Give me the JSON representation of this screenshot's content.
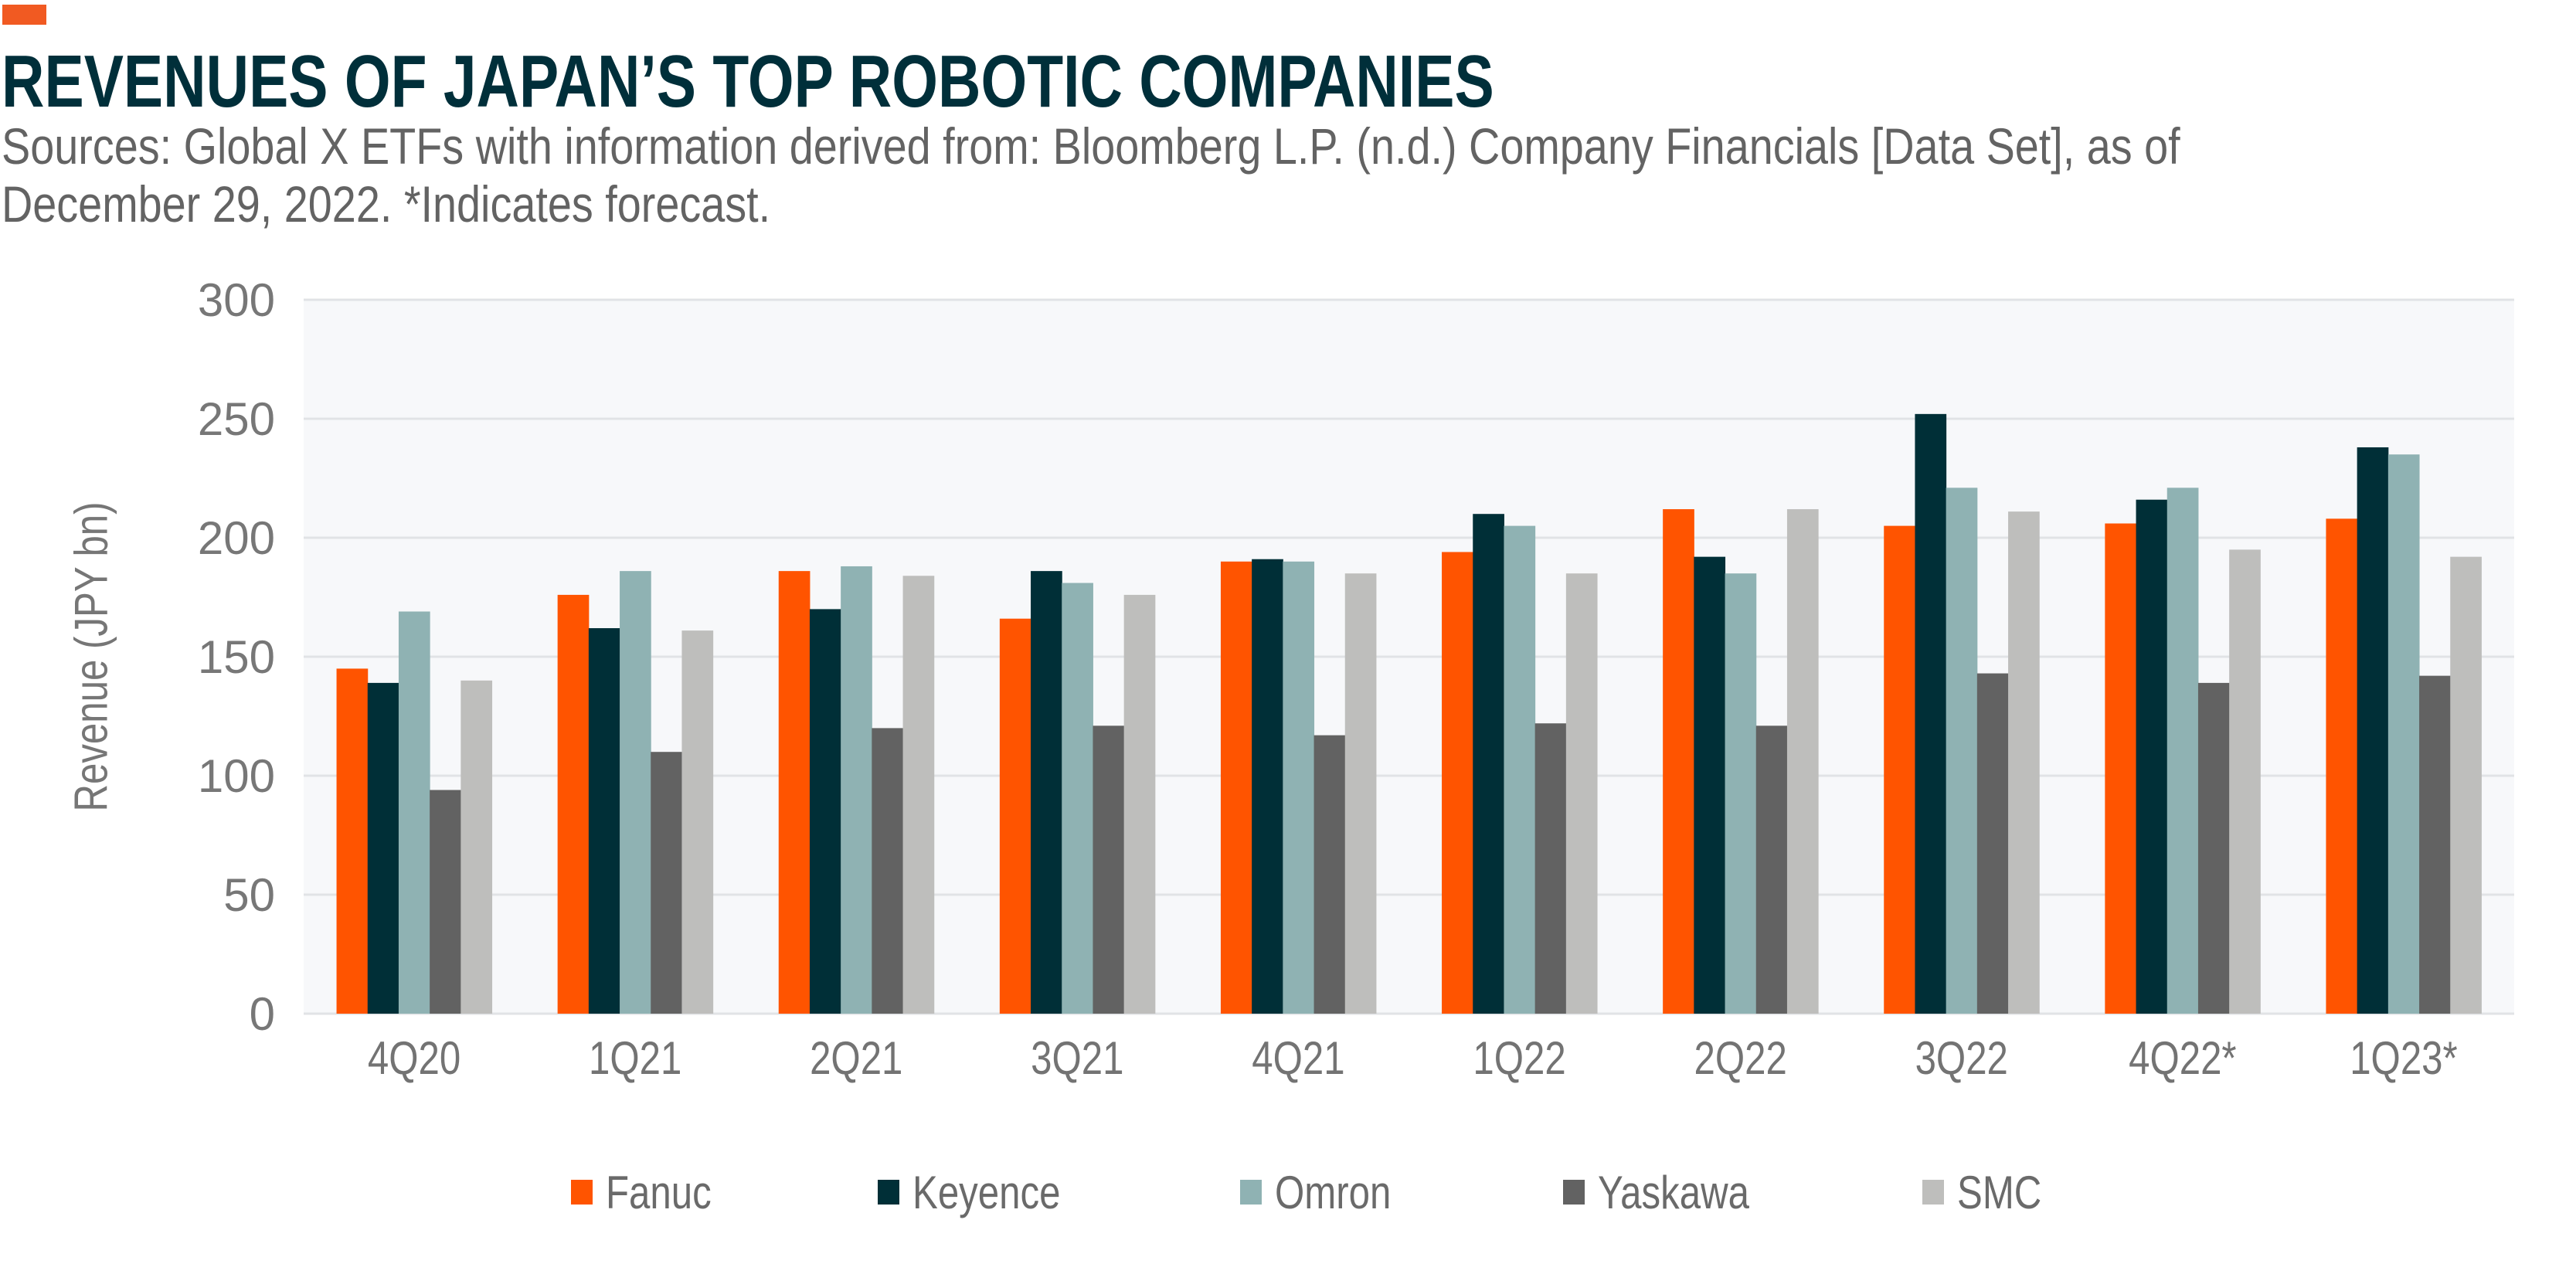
{
  "header": {
    "accent_color": "#F15A22",
    "title": "REVENUES OF JAPAN’S TOP ROBOTIC COMPANIES",
    "subtitle_lines": [
      "Sources: Global X ETFs with information derived from: Bloomberg L.P. (n.d.) Company Financials [Data Set], as of",
      "December 29, 2022. *Indicates forecast."
    ]
  },
  "chart_data": {
    "type": "bar",
    "title": "REVENUES OF JAPAN’S TOP ROBOTIC COMPANIES",
    "xlabel": "",
    "ylabel": "Revenue (JPY bn)",
    "ylim": [
      0,
      300
    ],
    "yticks": [
      0,
      50,
      100,
      150,
      200,
      250,
      300
    ],
    "grid": true,
    "legend_position": "bottom",
    "categories": [
      "4Q20",
      "1Q21",
      "2Q21",
      "3Q21",
      "4Q21",
      "1Q22",
      "2Q22",
      "3Q22",
      "4Q22*",
      "1Q23*"
    ],
    "series": [
      {
        "name": "Fanuc",
        "color": "#FF5400",
        "values": [
          145,
          176,
          186,
          166,
          190,
          194,
          212,
          205,
          206,
          208
        ]
      },
      {
        "name": "Keyence",
        "color": "#002F37",
        "values": [
          139,
          162,
          170,
          186,
          191,
          210,
          192,
          252,
          216,
          238
        ]
      },
      {
        "name": "Omron",
        "color": "#8FB2B3",
        "values": [
          169,
          186,
          188,
          181,
          190,
          205,
          185,
          221,
          221,
          235
        ]
      },
      {
        "name": "Yaskawa",
        "color": "#626262",
        "values": [
          94,
          110,
          120,
          121,
          117,
          122,
          121,
          143,
          139,
          142
        ]
      },
      {
        "name": "SMC",
        "color": "#BEBEBC",
        "values": [
          140,
          161,
          184,
          176,
          185,
          185,
          212,
          211,
          195,
          192
        ]
      }
    ]
  }
}
